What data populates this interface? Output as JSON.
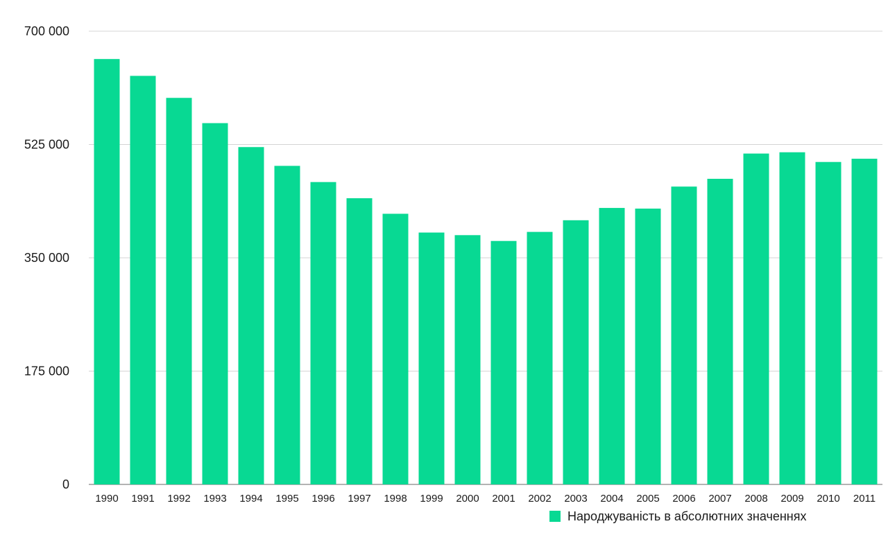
{
  "chart_data": {
    "type": "bar",
    "categories": [
      "1990",
      "1991",
      "1992",
      "1993",
      "1994",
      "1995",
      "1996",
      "1997",
      "1998",
      "1999",
      "2000",
      "2001",
      "2002",
      "2003",
      "2004",
      "2005",
      "2006",
      "2007",
      "2008",
      "2009",
      "2010",
      "2011"
    ],
    "series": [
      {
        "name": "Народжуваність в абсолютних значеннях",
        "values": [
          657000,
          631000,
          597000,
          558000,
          521000,
          492000,
          467000,
          442000,
          418000,
          389000,
          385000,
          376000,
          390000,
          408000,
          427000,
          426000,
          460000,
          472000,
          511000,
          513000,
          498000,
          503000
        ],
        "color": "#08d993"
      }
    ],
    "ylim": [
      0,
      700000
    ],
    "yticks": [
      0,
      175000,
      350000,
      525000,
      700000
    ],
    "ytick_labels": [
      "0",
      "175 000",
      "350 000",
      "525 000",
      "700 000"
    ],
    "grid": true,
    "legend_position": "bottom-right",
    "title": "",
    "xlabel": "",
    "ylabel": ""
  }
}
